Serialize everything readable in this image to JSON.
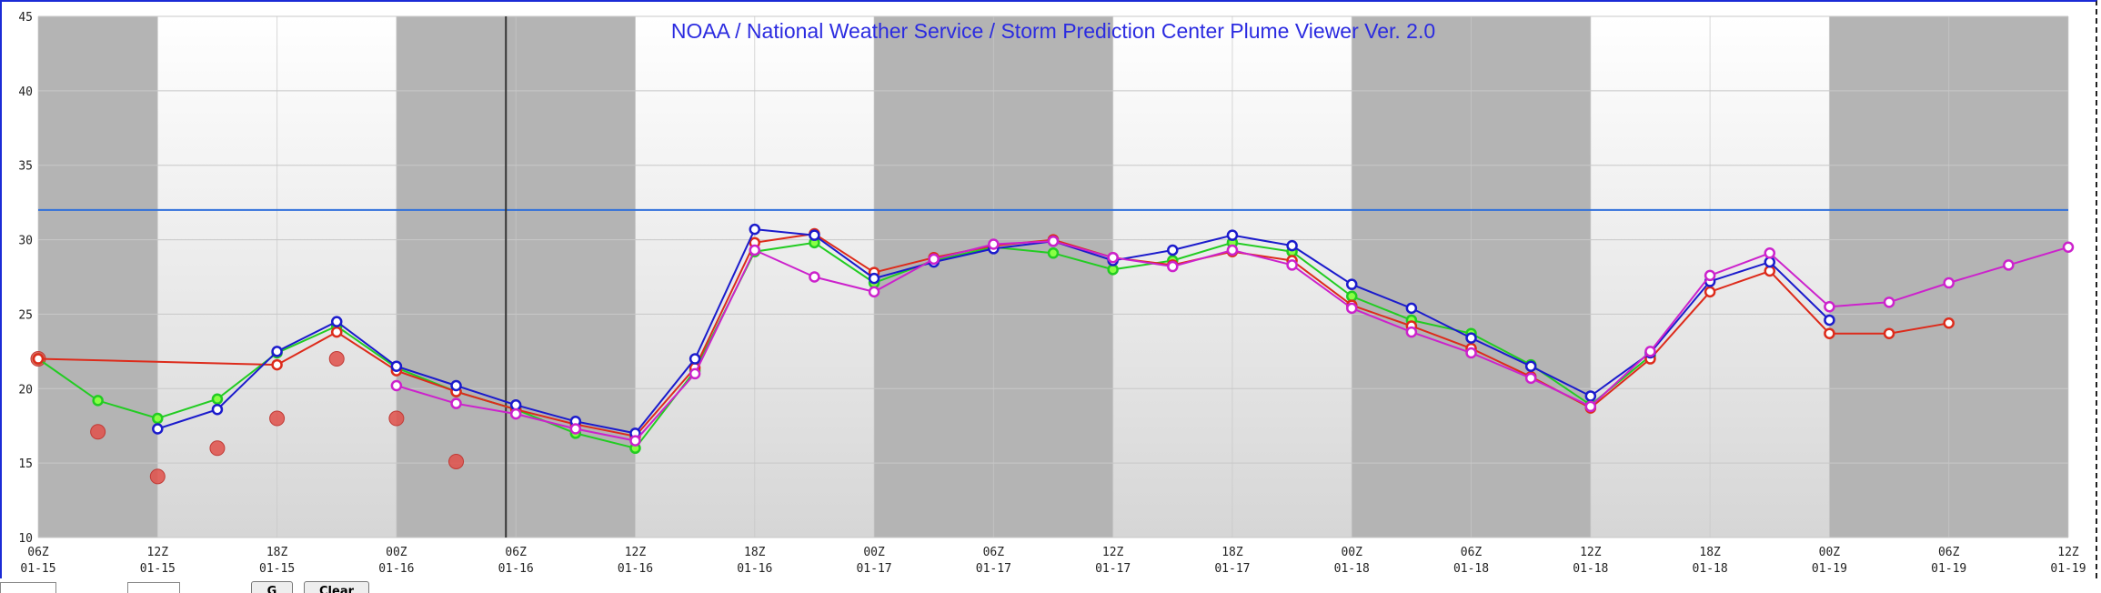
{
  "title": "NOAA / National Weather Service / Storm Prediction Center Plume Viewer Ver. 2.0",
  "colors": {
    "title": "#2b2be0",
    "night_band": "#b4b4b4",
    "threshold": "#2f6fdb",
    "grid": "#c8c8c8",
    "cursor": "#333333",
    "obs": "#e0504a"
  },
  "chart_data": {
    "type": "line",
    "title": "NOAA / National Weather Service / Storm Prediction Center Plume Viewer Ver. 2.0",
    "xlabel": "",
    "ylabel": "",
    "ylim": [
      10,
      45
    ],
    "yticks": [
      10,
      15,
      20,
      25,
      30,
      35,
      40,
      45
    ],
    "x_hour_range": [
      6,
      108
    ],
    "xticks": [
      {
        "hour": 6,
        "label1": "06Z",
        "label2": "01-15"
      },
      {
        "hour": 12,
        "label1": "12Z",
        "label2": "01-15"
      },
      {
        "hour": 18,
        "label1": "18Z",
        "label2": "01-15"
      },
      {
        "hour": 24,
        "label1": "00Z",
        "label2": "01-16"
      },
      {
        "hour": 30,
        "label1": "06Z",
        "label2": "01-16"
      },
      {
        "hour": 36,
        "label1": "12Z",
        "label2": "01-16"
      },
      {
        "hour": 42,
        "label1": "18Z",
        "label2": "01-16"
      },
      {
        "hour": 48,
        "label1": "00Z",
        "label2": "01-17"
      },
      {
        "hour": 54,
        "label1": "06Z",
        "label2": "01-17"
      },
      {
        "hour": 60,
        "label1": "12Z",
        "label2": "01-17"
      },
      {
        "hour": 66,
        "label1": "18Z",
        "label2": "01-17"
      },
      {
        "hour": 72,
        "label1": "00Z",
        "label2": "01-18"
      },
      {
        "hour": 78,
        "label1": "06Z",
        "label2": "01-18"
      },
      {
        "hour": 84,
        "label1": "12Z",
        "label2": "01-18"
      },
      {
        "hour": 90,
        "label1": "18Z",
        "label2": "01-18"
      },
      {
        "hour": 96,
        "label1": "00Z",
        "label2": "01-19"
      },
      {
        "hour": 102,
        "label1": "06Z",
        "label2": "01-19"
      },
      {
        "hour": 108,
        "label1": "12Z",
        "label2": "01-19"
      }
    ],
    "night_bands": [
      [
        6,
        12
      ],
      [
        24,
        36
      ],
      [
        48,
        60
      ],
      [
        72,
        84
      ],
      [
        96,
        108
      ]
    ],
    "threshold": 32,
    "current_time_hour": 29.5,
    "grid": true,
    "series": [
      {
        "color": "#22cc22",
        "marker_fill": "#88ff44",
        "points": [
          [
            6,
            22.0
          ],
          [
            9,
            19.2
          ],
          [
            12,
            18.0
          ],
          [
            15,
            19.3
          ],
          [
            18,
            22.4
          ],
          [
            21,
            24.2
          ],
          [
            24,
            21.4
          ],
          [
            27,
            19.8
          ],
          [
            30,
            18.6
          ],
          [
            33,
            17.0
          ],
          [
            36,
            16.0
          ],
          [
            39,
            21.2
          ],
          [
            42,
            29.2
          ],
          [
            45,
            29.8
          ],
          [
            48,
            27.1
          ],
          [
            51,
            28.6
          ],
          [
            54,
            29.5
          ],
          [
            57,
            29.1
          ],
          [
            60,
            28.0
          ],
          [
            63,
            28.6
          ],
          [
            66,
            29.8
          ],
          [
            69,
            29.2
          ],
          [
            72,
            26.2
          ],
          [
            75,
            24.6
          ],
          [
            78,
            23.7
          ],
          [
            81,
            21.6
          ],
          [
            84,
            18.9
          ],
          [
            87,
            22.2
          ]
        ]
      },
      {
        "color": "#dd2b1b",
        "marker_fill": "#ffffff",
        "points": [
          [
            6,
            22.0
          ],
          [
            18,
            21.6
          ],
          [
            21,
            23.8
          ],
          [
            24,
            21.2
          ],
          [
            27,
            19.8
          ],
          [
            30,
            18.6
          ],
          [
            33,
            17.6
          ],
          [
            36,
            16.8
          ],
          [
            39,
            21.4
          ],
          [
            42,
            29.8
          ],
          [
            45,
            30.4
          ],
          [
            48,
            27.8
          ],
          [
            51,
            28.8
          ],
          [
            54,
            29.6
          ],
          [
            57,
            30.0
          ],
          [
            60,
            28.8
          ],
          [
            63,
            28.3
          ],
          [
            66,
            29.2
          ],
          [
            69,
            28.6
          ],
          [
            72,
            25.6
          ],
          [
            75,
            24.2
          ],
          [
            78,
            22.7
          ],
          [
            81,
            20.8
          ],
          [
            84,
            18.7
          ],
          [
            87,
            22.0
          ],
          [
            90,
            26.5
          ],
          [
            93,
            27.9
          ],
          [
            96,
            23.7
          ],
          [
            99,
            23.7
          ],
          [
            102,
            24.4
          ]
        ]
      },
      {
        "color": "#1b1bcc",
        "marker_fill": "#ffffff",
        "points": [
          [
            12,
            17.3
          ],
          [
            15,
            18.6
          ],
          [
            18,
            22.5
          ],
          [
            21,
            24.5
          ],
          [
            24,
            21.5
          ],
          [
            27,
            20.2
          ],
          [
            30,
            18.9
          ],
          [
            33,
            17.8
          ],
          [
            36,
            17.0
          ],
          [
            39,
            22.0
          ],
          [
            42,
            30.7
          ],
          [
            45,
            30.3
          ],
          [
            48,
            27.4
          ],
          [
            51,
            28.5
          ],
          [
            54,
            29.4
          ],
          [
            57,
            29.9
          ],
          [
            60,
            28.6
          ],
          [
            63,
            29.3
          ],
          [
            66,
            30.3
          ],
          [
            69,
            29.6
          ],
          [
            72,
            27.0
          ],
          [
            75,
            25.4
          ],
          [
            78,
            23.4
          ],
          [
            81,
            21.5
          ],
          [
            84,
            19.5
          ],
          [
            87,
            22.4
          ],
          [
            90,
            27.2
          ],
          [
            93,
            28.5
          ],
          [
            96,
            24.6
          ]
        ]
      },
      {
        "color": "#cc22cc",
        "marker_fill": "#ffffff",
        "points": [
          [
            24,
            20.2
          ],
          [
            27,
            19.0
          ],
          [
            30,
            18.3
          ],
          [
            33,
            17.3
          ],
          [
            36,
            16.5
          ],
          [
            39,
            21.0
          ],
          [
            42,
            29.3
          ],
          [
            45,
            27.5
          ],
          [
            48,
            26.5
          ],
          [
            51,
            28.7
          ],
          [
            54,
            29.7
          ],
          [
            57,
            29.9
          ],
          [
            60,
            28.8
          ],
          [
            63,
            28.2
          ],
          [
            66,
            29.3
          ],
          [
            69,
            28.3
          ],
          [
            72,
            25.4
          ],
          [
            75,
            23.8
          ],
          [
            78,
            22.4
          ],
          [
            81,
            20.7
          ],
          [
            84,
            18.8
          ],
          [
            87,
            22.5
          ],
          [
            90,
            27.6
          ],
          [
            93,
            29.1
          ],
          [
            96,
            25.5
          ],
          [
            99,
            25.8
          ],
          [
            102,
            27.1
          ],
          [
            105,
            28.3
          ],
          [
            108,
            29.5
          ]
        ]
      }
    ],
    "observations": [
      [
        6,
        22.0
      ],
      [
        9,
        17.1
      ],
      [
        12,
        14.1
      ],
      [
        15,
        16.0
      ],
      [
        18,
        18.0
      ],
      [
        21,
        22.0
      ],
      [
        24,
        18.0
      ],
      [
        27,
        15.1
      ]
    ]
  },
  "controls": {
    "button1_label": "G",
    "button2_label": "Clear"
  }
}
